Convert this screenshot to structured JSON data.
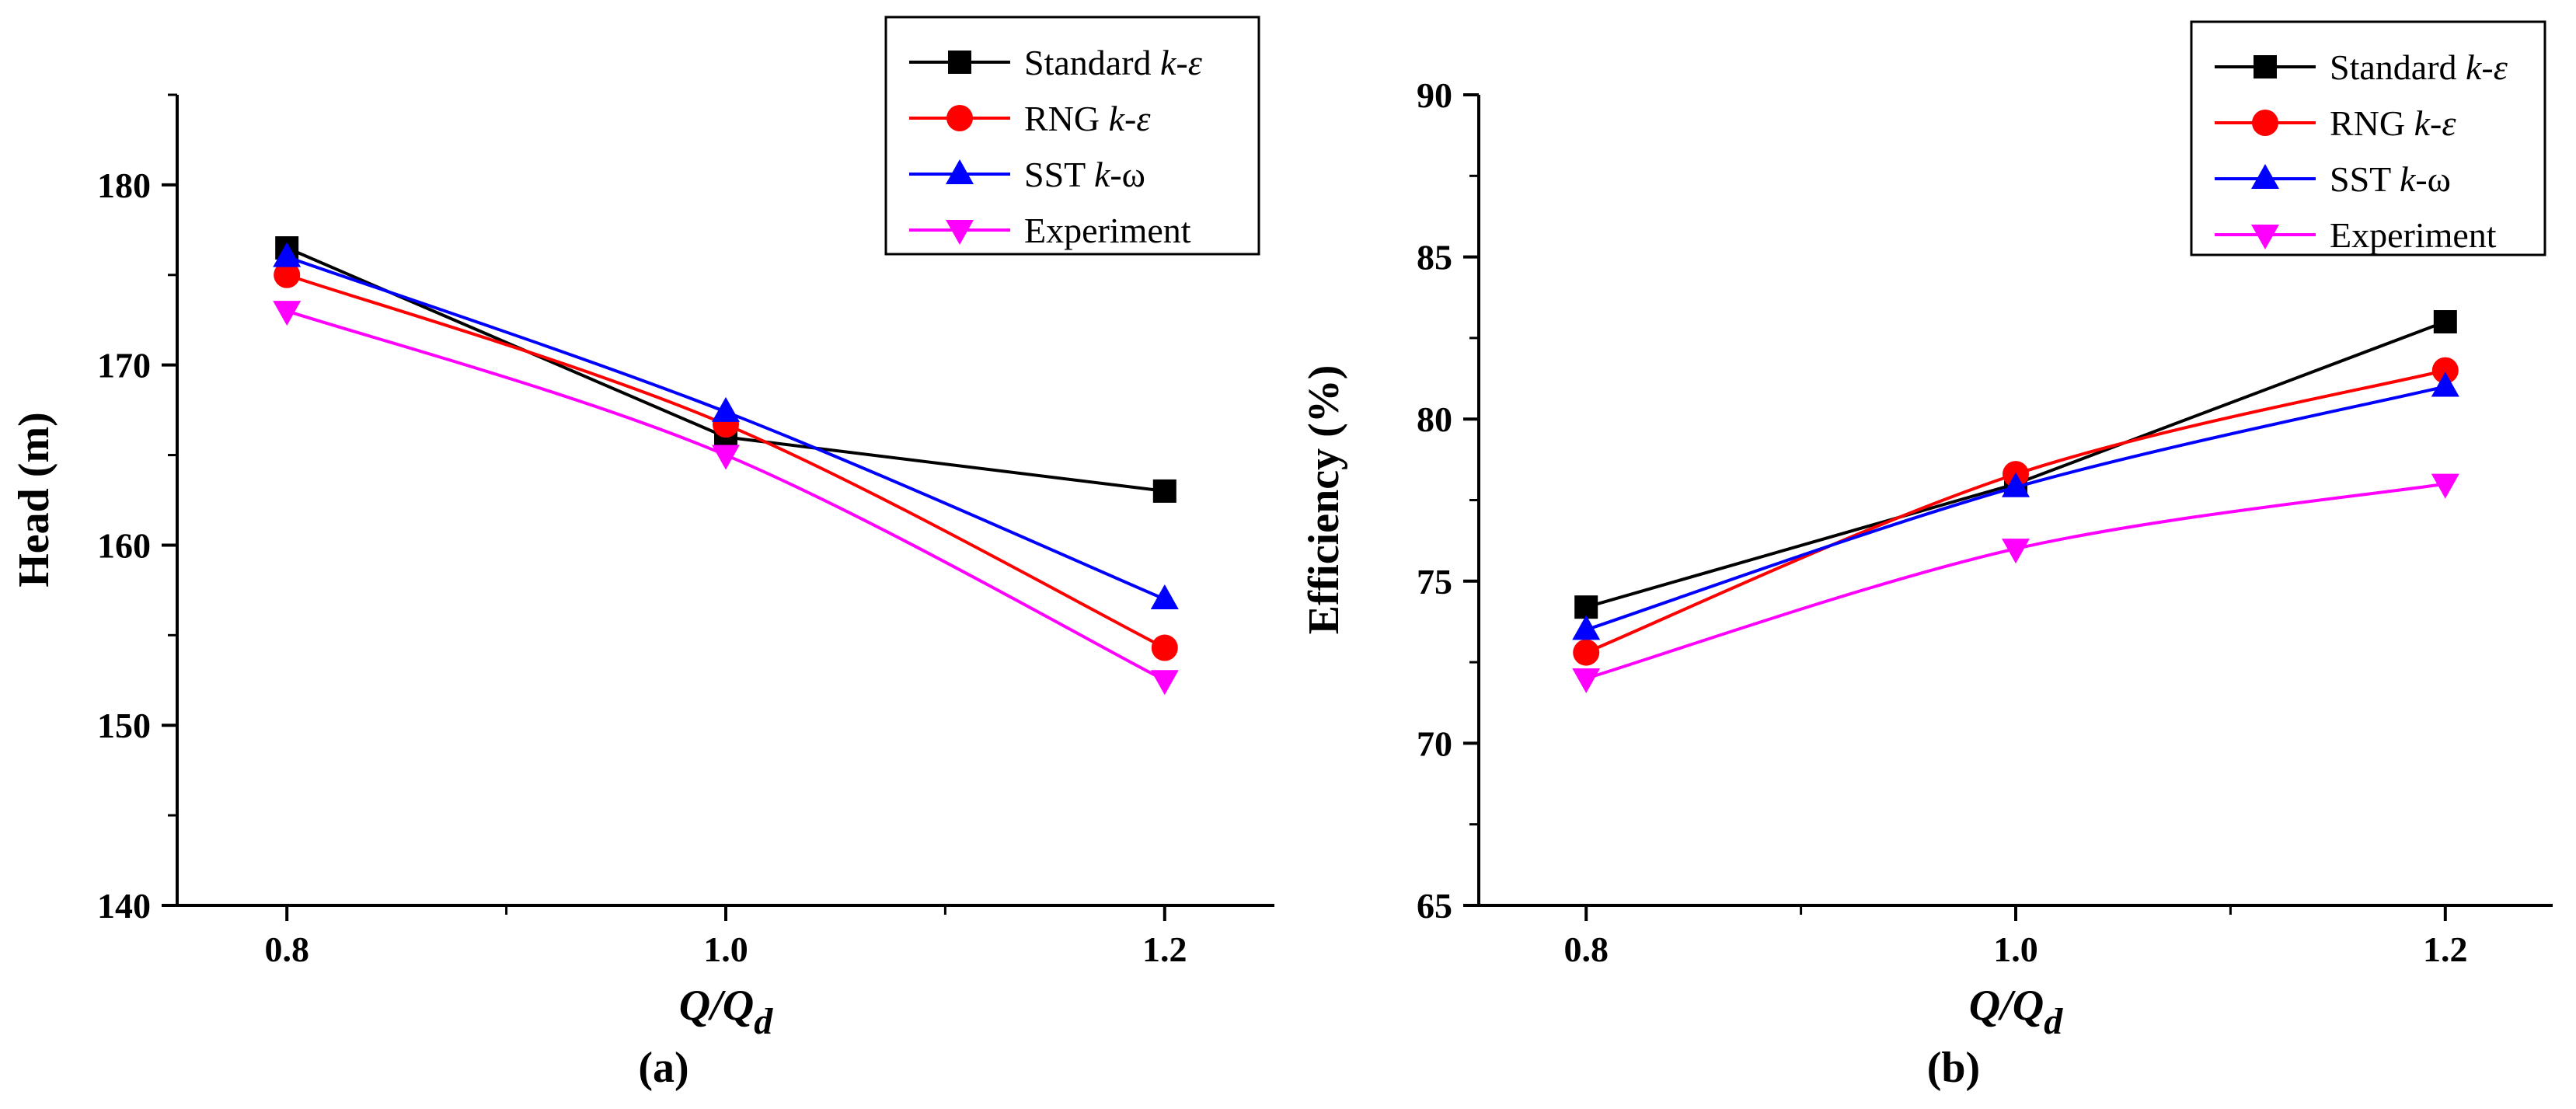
{
  "chart_data": [
    {
      "type": "line",
      "panel_label": "(a)",
      "xlabel": {
        "main": "Q",
        "slash": "/",
        "q2": "Q",
        "sub": "d"
      },
      "ylabel": "Head (m)",
      "x": [
        0.8,
        1.0,
        1.2
      ],
      "xlim": [
        0.75,
        1.25
      ],
      "ylim": [
        140,
        185
      ],
      "xticks": [
        "0.8",
        "1.0",
        "1.2"
      ],
      "yticks": [
        "140",
        "150",
        "160",
        "170",
        "180"
      ],
      "legend_position": "top-right",
      "series": [
        {
          "name": "Standard ",
          "italic": "k-ε",
          "color": "#000000",
          "marker": "square",
          "values": [
            176.5,
            166.0,
            163.0
          ]
        },
        {
          "name": "RNG ",
          "italic": "k-ε",
          "color": "#ff0000",
          "marker": "circle",
          "values": [
            175.0,
            166.7,
            154.3
          ]
        },
        {
          "name": "SST ",
          "italic": "k",
          "suffix": "-ω",
          "color": "#0000ff",
          "marker": "triangle-up",
          "values": [
            176.0,
            167.4,
            157.0
          ]
        },
        {
          "name": "Experiment",
          "italic": "",
          "color": "#ff00ff",
          "marker": "triangle-down",
          "values": [
            173.0,
            165.0,
            152.5
          ]
        }
      ]
    },
    {
      "type": "line",
      "panel_label": "(b)",
      "xlabel": {
        "main": "Q",
        "slash": "/",
        "q2": "Q",
        "sub": "d"
      },
      "ylabel": "Efficiency (%)",
      "x": [
        0.8,
        1.0,
        1.2
      ],
      "xlim": [
        0.75,
        1.25
      ],
      "ylim": [
        65,
        90
      ],
      "xticks": [
        "0.8",
        "1.0",
        "1.2"
      ],
      "yticks": [
        "65",
        "70",
        "75",
        "80",
        "85",
        "90"
      ],
      "legend_position": "top-right",
      "series": [
        {
          "name": "Standard ",
          "italic": "k-ε",
          "color": "#000000",
          "marker": "square",
          "values": [
            74.2,
            78.0,
            83.0
          ]
        },
        {
          "name": "RNG ",
          "italic": "k-ε",
          "color": "#ff0000",
          "marker": "circle",
          "values": [
            72.8,
            78.3,
            81.5
          ]
        },
        {
          "name": "SST ",
          "italic": "k",
          "suffix": "-ω",
          "color": "#0000ff",
          "marker": "triangle-up",
          "values": [
            73.5,
            77.9,
            81.0
          ]
        },
        {
          "name": "Experiment",
          "italic": "",
          "color": "#ff00ff",
          "marker": "triangle-down",
          "values": [
            72.0,
            76.0,
            78.0
          ]
        }
      ]
    }
  ]
}
